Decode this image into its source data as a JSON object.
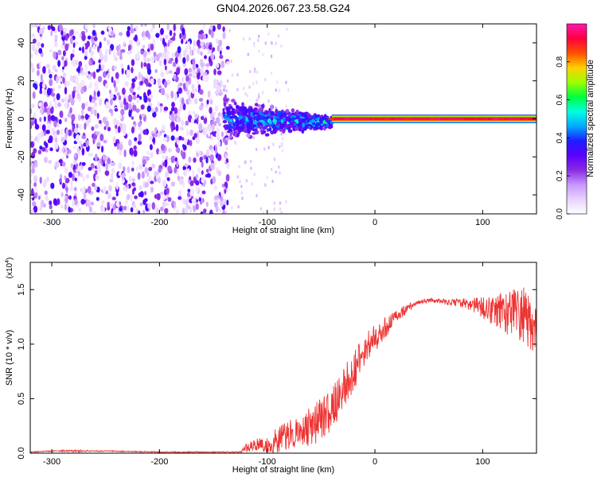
{
  "title": "GN04.2026.067.23.58.G24",
  "chart_data": [
    {
      "type": "heatmap",
      "xlabel": "Height of straight line (km)",
      "ylabel": "Frequency (Hz)",
      "xlim": [
        -320,
        150
      ],
      "ylim": [
        -50,
        50
      ],
      "x_ticks": [
        -300,
        -200,
        -100,
        0,
        100
      ],
      "y_ticks": [
        -40,
        -20,
        0,
        20,
        40
      ],
      "colorbar": {
        "label": "Normalized spectral amplitude",
        "range": [
          0,
          1
        ],
        "ticks": [
          "0.0",
          "0.2",
          "0.4",
          "0.6",
          "0.8"
        ],
        "colormap": [
          "#ffffff",
          "#e9d2ff",
          "#c796ff",
          "#8a2be2",
          "#5a00ff",
          "#1e1eff",
          "#00aaff",
          "#00ffe0",
          "#00ff40",
          "#9aff00",
          "#ffd000",
          "#ff5000",
          "#ff0040",
          "#ff1aa8"
        ]
      },
      "regions": [
        {
          "x": [
            -320,
            -140
          ],
          "description": "broadband noise",
          "amplitude": 0.15
        },
        {
          "x": [
            -140,
            -40
          ],
          "freq_center": [
            0,
            -2
          ],
          "freq_halfwidth": [
            12,
            3
          ],
          "amplitude": 0.3
        },
        {
          "x": [
            -40,
            150
          ],
          "freq_center": 0,
          "freq_halfwidth": 2,
          "peak_amplitude": 0.95
        }
      ]
    },
    {
      "type": "line",
      "xlabel": "Height of straight line (km)",
      "ylabel": "SNR (10 * v/v)",
      "y_multiplier_label": "(x10",
      "y_multiplier_exp": "4",
      "y_multiplier_close": ")",
      "xlim": [
        -320,
        150
      ],
      "ylim": [
        0,
        1.75
      ],
      "x_ticks": [
        -300,
        -200,
        -100,
        0,
        100
      ],
      "y_ticks": [
        "0.0",
        "0.5",
        "1.0",
        "1.5"
      ],
      "series": [
        {
          "color": "#ee3333",
          "x": [
            -320,
            -300,
            -280,
            -250,
            -200,
            -150,
            -125,
            -118,
            -110,
            -100,
            -90,
            -80,
            -70,
            -60,
            -50,
            -40,
            -30,
            -20,
            -10,
            0,
            10,
            20,
            30,
            40,
            50,
            60,
            70,
            80,
            90,
            100,
            110,
            120,
            130,
            140,
            148
          ],
          "y": [
            0.01,
            0.02,
            0.02,
            0.02,
            0.01,
            0.01,
            0.01,
            0.06,
            0.08,
            0.07,
            0.12,
            0.17,
            0.2,
            0.25,
            0.3,
            0.4,
            0.55,
            0.75,
            0.95,
            1.05,
            1.15,
            1.25,
            1.33,
            1.38,
            1.4,
            1.4,
            1.38,
            1.38,
            1.36,
            1.33,
            1.3,
            1.3,
            1.3,
            1.25,
            1.22
          ],
          "noise": [
            0,
            0,
            0.01,
            0,
            0,
            0,
            0,
            0.05,
            0.06,
            0.07,
            0.12,
            0.14,
            0.15,
            0.18,
            0.2,
            0.22,
            0.22,
            0.18,
            0.15,
            0.12,
            0.1,
            0.06,
            0.04,
            0.02,
            0.02,
            0.02,
            0.03,
            0.04,
            0.06,
            0.1,
            0.14,
            0.2,
            0.24,
            0.28,
            0.3
          ]
        }
      ]
    }
  ]
}
